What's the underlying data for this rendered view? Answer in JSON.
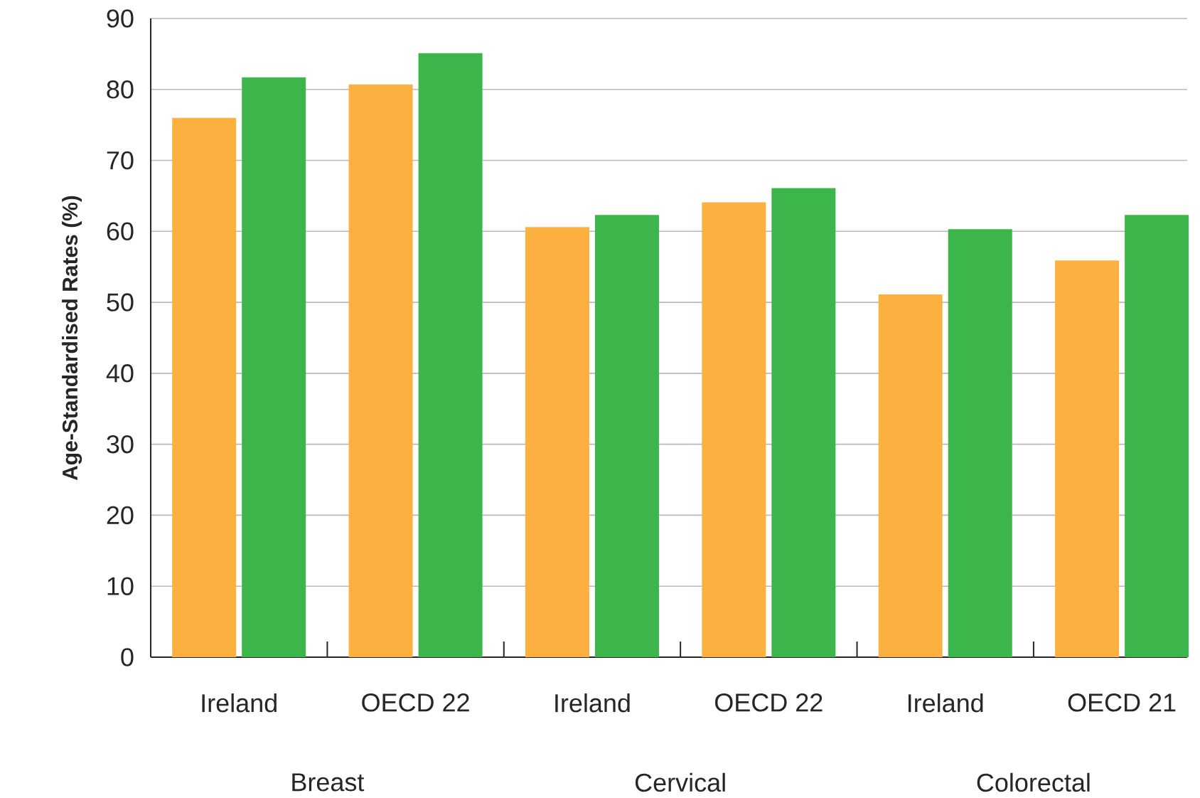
{
  "chart_data": {
    "type": "bar",
    "ylabel": "Age-Standardised Rates (%)",
    "categories": [
      "Ireland",
      "OECD 22",
      "Ireland",
      "OECD 22",
      "Ireland",
      "OECD 21"
    ],
    "series": [
      {
        "color": "#fbb040",
        "values": [
          76,
          80.7,
          60.6,
          64.1,
          51.1,
          55.9
        ]
      },
      {
        "color": "#3cb54a",
        "values": [
          81.7,
          85.1,
          62.3,
          66.1,
          60.3,
          62.3
        ]
      }
    ],
    "annotations": [
      "Breast",
      "Cervical",
      "Colorectal"
    ],
    "ylim": [
      0,
      90
    ],
    "yticks": [
      0,
      10,
      20,
      30,
      40,
      50,
      60,
      70,
      80,
      90
    ],
    "grid": "y"
  }
}
